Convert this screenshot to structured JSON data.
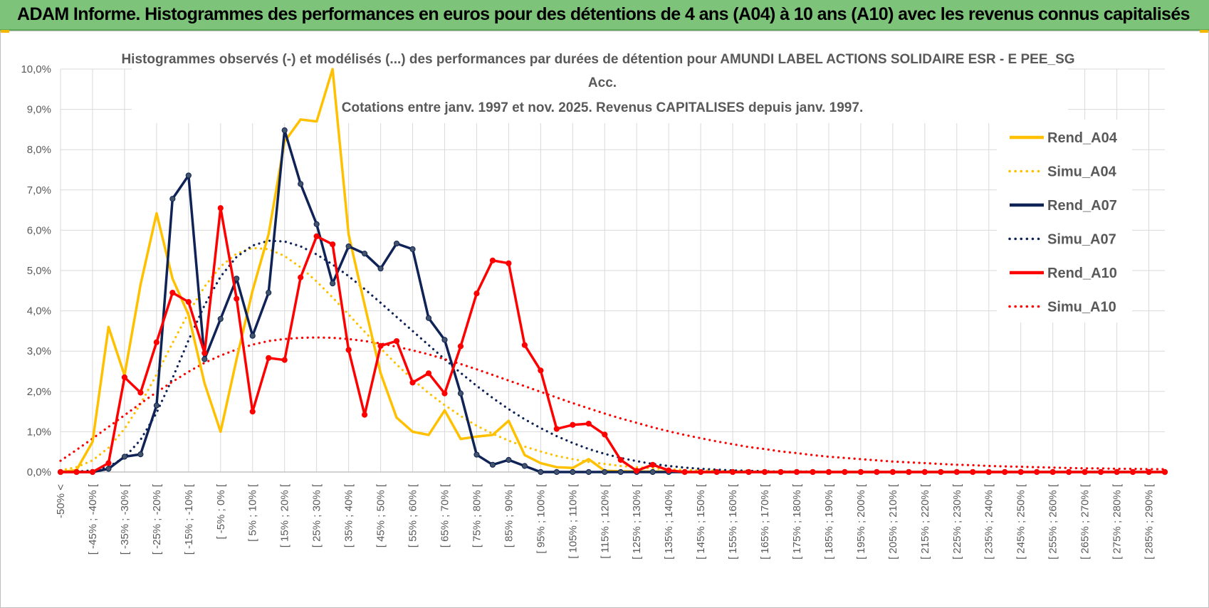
{
  "banner": {
    "title": "ADAM Informe. Histogrammes des performances en euros pour des détentions de 4 ans (A04) à 10 ans (A10) avec les revenus connus capitalisés"
  },
  "chart_data": {
    "type": "line",
    "title_lines": [
      "Histogrammes observés (-) et modélisés (...) des performances par durées de détention pour AMUNDI LABEL ACTIONS SOLIDAIRE ESR - E PEE_SG",
      "Acc.",
      "Cotations entre janv. 1997 et nov. 2025. Revenus CAPITALISES depuis janv. 1997."
    ],
    "ylim": [
      0,
      10
    ],
    "y_ticks": [
      "0,0%",
      "1,0%",
      "2,0%",
      "3,0%",
      "4,0%",
      "5,0%",
      "6,0%",
      "7,0%",
      "8,0%",
      "9,0%",
      "10,0%"
    ],
    "x_tick_labels": [
      "-50% <",
      "[ -45% ; -40% [",
      "[ -35% ; -30% [",
      "[ -25% ; -20% [",
      "[ -15% ; -10% [",
      "[ -5% ; 0% [",
      "[ 5% ; 10% [",
      "[ 15% ; 20% [",
      "[ 25% ; 30% [",
      "[ 35% ; 40% [",
      "[ 45% ; 50% [",
      "[ 55% ; 60% [",
      "[ 65% ; 70% [",
      "[ 75% ; 80% [",
      "[ 85% ; 90% [",
      "[ 95% ; 100% [",
      "[ 105% ; 110% [",
      "[ 115% ; 120% [",
      "[ 125% ; 130% [",
      "[ 135% ; 140% [",
      "[ 145% ; 150% [",
      "[ 155% ; 160% [",
      "[ 165% ; 170% [",
      "[ 175% ; 180% [",
      "[ 185% ; 190% [",
      "[ 195% ; 200% [",
      "[ 205% ; 210% [",
      "[ 215% ; 220% [",
      "[ 225% ; 230% [",
      "[ 235% ; 240% [",
      "[ 245% ; 250% [",
      "[ 255% ; 260% [",
      "[ 265% ; 270% [",
      "[ 275% ; 280% [",
      "[ 285% ; 290% ["
    ],
    "categories_count": 70,
    "series": [
      {
        "name": "Rend_A04",
        "color": "#ffc000",
        "style": "solid",
        "markers": false,
        "values": [
          0,
          0.05,
          0.75,
          3.6,
          2.4,
          4.65,
          6.42,
          4.8,
          3.9,
          2.2,
          1.0,
          2.8,
          4.5,
          5.9,
          8.2,
          8.75,
          8.7,
          10.5,
          5.9,
          4.15,
          2.45,
          1.35,
          1.0,
          0.92,
          1.53,
          0.82,
          0.88,
          0.92,
          1.27,
          0.42,
          0.22,
          0.12,
          0.1,
          0.32,
          0.03,
          0.02,
          0.01,
          0.01,
          0.01,
          0,
          0,
          0,
          0,
          0,
          0,
          0,
          0,
          0,
          0,
          0,
          0,
          0,
          0,
          0,
          0,
          0,
          0,
          0,
          0,
          0,
          0,
          0,
          0,
          0,
          0,
          0,
          0,
          0,
          0,
          0
        ]
      },
      {
        "name": "Simu_A04",
        "color": "#ffc000",
        "style": "dotted",
        "markers": false,
        "values": [
          0.04,
          0.12,
          0.29,
          0.6,
          1.07,
          1.69,
          2.42,
          3.2,
          3.95,
          4.6,
          5.1,
          5.42,
          5.56,
          5.53,
          5.36,
          5.08,
          4.73,
          4.33,
          3.91,
          3.48,
          3.07,
          2.67,
          2.3,
          1.96,
          1.66,
          1.39,
          1.15,
          0.95,
          0.78,
          0.63,
          0.51,
          0.4,
          0.32,
          0.25,
          0.2,
          0.15,
          0.12,
          0.09,
          0.07,
          0.05,
          0.04,
          0.03,
          0.02,
          0.02,
          0.01,
          0.01,
          0.01,
          0.01,
          0,
          0,
          0,
          0,
          0,
          0,
          0,
          0,
          0,
          0,
          0,
          0,
          0,
          0,
          0,
          0,
          0,
          0,
          0,
          0,
          0,
          0
        ]
      },
      {
        "name": "Rend_A07",
        "color": "#0f2357",
        "style": "solid",
        "markers": true,
        "values": [
          0,
          0,
          0,
          0.08,
          0.38,
          0.44,
          1.65,
          6.78,
          7.36,
          2.8,
          3.8,
          4.8,
          3.38,
          4.45,
          8.48,
          7.15,
          6.15,
          4.68,
          5.6,
          5.42,
          5.05,
          5.67,
          5.53,
          3.82,
          3.28,
          1.95,
          0.43,
          0.18,
          0.3,
          0.15,
          0,
          0,
          0,
          0,
          0,
          0,
          0,
          0,
          0,
          0,
          0,
          0,
          0,
          0,
          0,
          0,
          0,
          0,
          0,
          0,
          0,
          0,
          0,
          0,
          0,
          0,
          0,
          0,
          0,
          0,
          0,
          0,
          0,
          0,
          0,
          0,
          0,
          0,
          0,
          0
        ]
      },
      {
        "name": "Simu_A07",
        "color": "#0f2357",
        "style": "dotted",
        "markers": false,
        "values": [
          0,
          0.01,
          0.04,
          0.13,
          0.36,
          0.8,
          1.47,
          2.33,
          3.27,
          4.14,
          4.85,
          5.34,
          5.62,
          5.74,
          5.72,
          5.6,
          5.4,
          5.15,
          4.86,
          4.54,
          4.2,
          3.85,
          3.5,
          3.15,
          2.8,
          2.46,
          2.14,
          1.84,
          1.56,
          1.31,
          1.09,
          0.89,
          0.72,
          0.57,
          0.45,
          0.35,
          0.27,
          0.2,
          0.15,
          0.11,
          0.08,
          0.06,
          0.04,
          0.03,
          0.02,
          0.01,
          0.01,
          0.01,
          0,
          0,
          0,
          0,
          0,
          0,
          0,
          0,
          0,
          0,
          0,
          0,
          0,
          0,
          0,
          0,
          0,
          0,
          0,
          0,
          0,
          0
        ]
      },
      {
        "name": "Rend_A10",
        "color": "#ff0000",
        "style": "solid",
        "markers": true,
        "values": [
          0,
          0,
          0,
          0.22,
          2.35,
          1.97,
          3.22,
          4.45,
          4.22,
          2.95,
          6.55,
          4.3,
          1.5,
          2.83,
          2.78,
          4.83,
          5.85,
          5.65,
          3.03,
          1.42,
          3.13,
          3.25,
          2.22,
          2.45,
          1.95,
          3.12,
          4.43,
          5.25,
          5.18,
          3.15,
          2.52,
          1.07,
          1.17,
          1.2,
          0.93,
          0.3,
          0.03,
          0.18,
          0.04,
          0,
          0,
          0,
          0,
          0,
          0,
          0,
          0,
          0,
          0,
          0,
          0,
          0,
          0,
          0,
          0,
          0,
          0,
          0,
          0,
          0,
          0,
          0,
          0,
          0,
          0,
          0,
          0,
          0,
          0,
          0
        ]
      },
      {
        "name": "Simu_A10",
        "color": "#ff0000",
        "style": "dotted",
        "markers": false,
        "values": [
          0.28,
          0.55,
          0.83,
          1.12,
          1.41,
          1.7,
          1.98,
          2.24,
          2.49,
          2.71,
          2.89,
          3.04,
          3.16,
          3.25,
          3.3,
          3.33,
          3.34,
          3.33,
          3.3,
          3.25,
          3.19,
          3.11,
          3.02,
          2.92,
          2.8,
          2.68,
          2.55,
          2.41,
          2.27,
          2.13,
          1.99,
          1.85,
          1.71,
          1.58,
          1.45,
          1.33,
          1.22,
          1.11,
          1.01,
          0.92,
          0.84,
          0.76,
          0.69,
          0.62,
          0.57,
          0.51,
          0.47,
          0.42,
          0.38,
          0.35,
          0.32,
          0.29,
          0.26,
          0.24,
          0.22,
          0.2,
          0.18,
          0.17,
          0.15,
          0.14,
          0.13,
          0.12,
          0.11,
          0.1,
          0.09,
          0.09,
          0.08,
          0.08,
          0.07,
          0.07
        ]
      }
    ],
    "legend_position": "right"
  }
}
